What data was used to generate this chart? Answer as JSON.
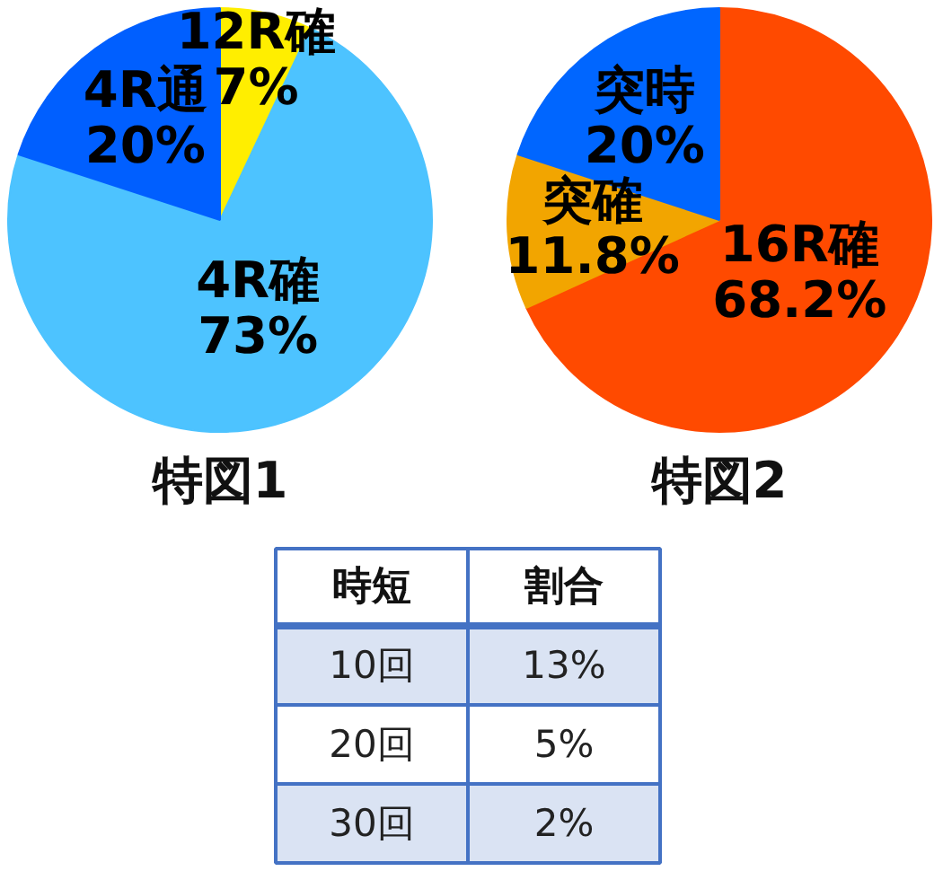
{
  "chart_data": [
    {
      "type": "pie",
      "title": "特図1",
      "categories": [
        "12R確",
        "4R確",
        "4R通"
      ],
      "values": [
        7,
        73,
        20
      ],
      "value_labels": [
        "7%",
        "73%",
        "20%"
      ],
      "colors": [
        "#ffee00",
        "#4dc3ff",
        "#005fff"
      ]
    },
    {
      "type": "pie",
      "title": "特図2",
      "categories": [
        "16R確",
        "突確",
        "突時"
      ],
      "values": [
        68.2,
        11.8,
        20
      ],
      "value_labels": [
        "68.2%",
        "11.8%",
        "20%"
      ],
      "colors": [
        "#ff4a00",
        "#f2a500",
        "#0066ff"
      ]
    },
    {
      "type": "other",
      "xlabel": "時短",
      "ylabel": "割合",
      "categories": [
        "10回",
        "20回",
        "30回"
      ],
      "value_labels": [
        "13%",
        "5%",
        "2%"
      ],
      "colors": [
        "#dae3f3",
        "#ffffff",
        "#dae3f3"
      ]
    }
  ]
}
